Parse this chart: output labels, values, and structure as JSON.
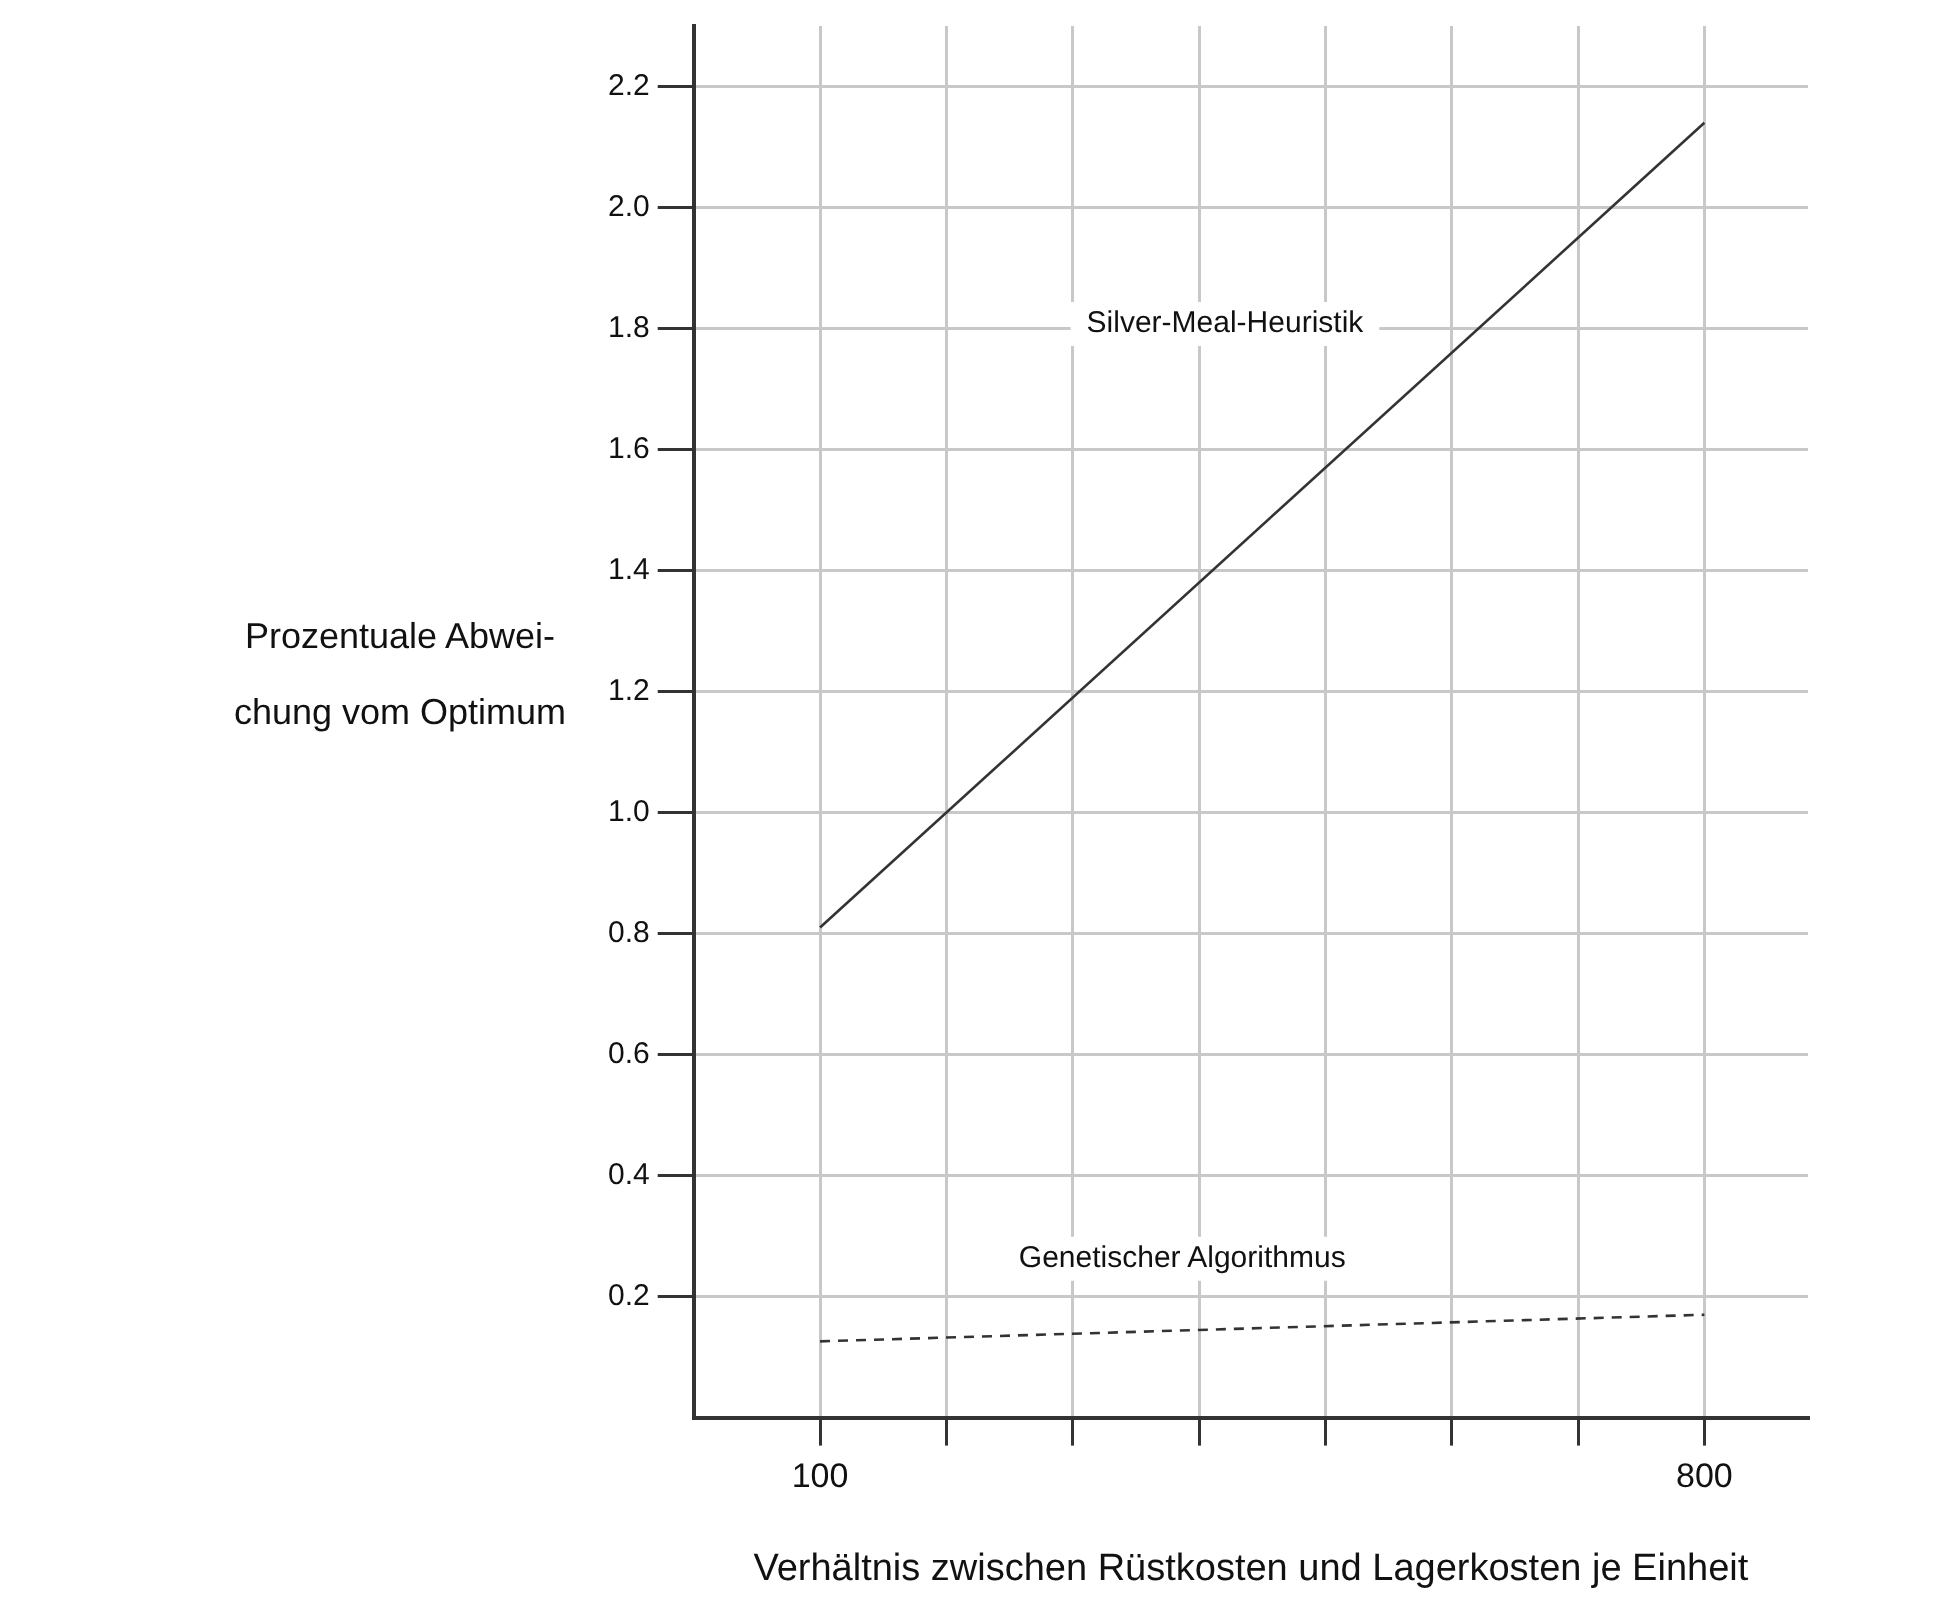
{
  "chart_data": {
    "type": "line",
    "xlabel": "Verhältnis zwischen Rüstkosten und Lagerkosten je Einheit",
    "ylabel": "Prozentuale Abwei-\nchung vom Optimum",
    "xlim": [
      0,
      882
    ],
    "xticks": [
      100,
      {
        "value": 200,
        "label": null
      },
      {
        "value": 300,
        "label": null
      },
      {
        "value": 400,
        "label": null
      },
      {
        "value": 500,
        "label": null
      },
      {
        "value": 600,
        "label": null
      },
      {
        "value": 700,
        "label": null
      },
      800
    ],
    "ylim": [
      0,
      2.3
    ],
    "yticks": [
      0.2,
      0.4,
      0.6,
      0.8,
      {
        "value": 1,
        "label": "1.0"
      },
      1.2,
      1.4,
      1.6,
      1.8,
      {
        "value": 2,
        "label": "2.0"
      },
      2.2
    ],
    "grid": true,
    "legend": false,
    "marker": "none",
    "x": [
      100,
      800
    ],
    "series": [
      {
        "name": "Silver-Meal-Heuristik",
        "color": "#333333",
        "values": [
          0.81,
          2.14
        ],
        "line_style": "solid"
      },
      {
        "name": "Genetischer Algorithmus",
        "color": "#333333",
        "values": [
          0.126,
          0.17
        ],
        "line_style": "dashed"
      }
    ]
  }
}
